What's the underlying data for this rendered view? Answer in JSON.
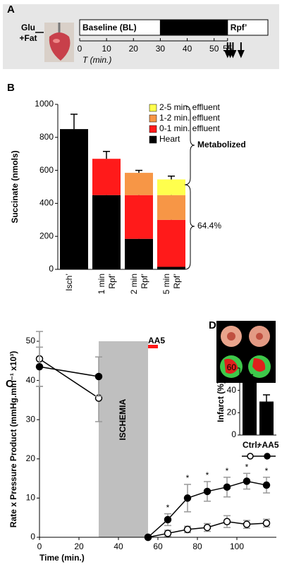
{
  "chart_data": [
    {
      "type": "timeline",
      "panel": "A",
      "label_lines": [
        "Glu",
        "+Fat"
      ],
      "xlim": [
        0,
        70
      ],
      "xticks": [
        0,
        10,
        20,
        30,
        40,
        50,
        55
      ],
      "xlabel": "T (min.)",
      "phases": [
        {
          "name": "Baseline (BL)",
          "start": 0,
          "end": 30,
          "color": "#ffffff"
        },
        {
          "name": "Ischemia",
          "start": 30,
          "end": 55,
          "color": "#000000"
        },
        {
          "name": "Rpf’",
          "start": 55,
          "end": 70,
          "color": "#ffffff"
        }
      ],
      "arrows": [
        55,
        56,
        57,
        60
      ]
    },
    {
      "type": "stacked_bar",
      "panel": "B",
      "ylabel": "Succinate (nmols)",
      "ylim": [
        0,
        1000
      ],
      "yticks": [
        0,
        200,
        400,
        600,
        800,
        1000
      ],
      "categories": [
        [
          "Isch’"
        ],
        [
          "1 min",
          "Rpf’"
        ],
        [
          "2 min",
          "Rpf’"
        ],
        [
          "5 min",
          "Rpf’"
        ]
      ],
      "series": [
        {
          "name": "Heart",
          "color": "#000000",
          "values": [
            850,
            450,
            185,
            15
          ],
          "errors": [
            90,
            18,
            30,
            12
          ]
        },
        {
          "name": "0-1 min. effluent",
          "color": "#ff1a1a",
          "values": [
            null,
            220,
            265,
            285
          ],
          "errors": [
            null,
            45,
            10,
            8
          ]
        },
        {
          "name": "1-2 min. effluent",
          "color": "#f79646",
          "values": [
            null,
            null,
            135,
            150
          ],
          "errors": [
            null,
            null,
            15,
            10
          ]
        },
        {
          "name": "2-5 min. effluent",
          "color": "#ffff4d",
          "values": [
            null,
            null,
            null,
            95
          ],
          "errors": [
            null,
            null,
            null,
            20
          ]
        }
      ],
      "annotations": [
        "Metabolized",
        "64.4%"
      ]
    },
    {
      "type": "line",
      "panel": "C",
      "ylabel": "Rate x Pressure Product (mmHg.min⁻¹ x10³)",
      "xlabel": "Time (min.)",
      "xlim": [
        0,
        120
      ],
      "xticks": [
        0,
        20,
        40,
        60,
        80,
        100
      ],
      "ylim": [
        0,
        50
      ],
      "yticks": [
        0,
        10,
        20,
        30,
        40,
        50
      ],
      "shade": {
        "label": "ISCHEMIA",
        "start": 30,
        "end": 55,
        "color": "#bfbfbf"
      },
      "treatment": {
        "label": "AA5",
        "start": 55,
        "end": 60,
        "color": "#ff1a1a"
      },
      "x": [
        0,
        30,
        55,
        65,
        75,
        85,
        95,
        105,
        115
      ],
      "series": [
        {
          "marker": "open",
          "color": "#000000",
          "values": [
            45.5,
            35.5,
            0,
            1,
            2,
            2.5,
            4,
            3.3,
            3.6
          ],
          "errors": [
            7,
            6,
            0,
            0.8,
            0.8,
            1,
            1.5,
            1,
            1
          ]
        },
        {
          "marker": "filled",
          "color": "#000000",
          "values": [
            43.5,
            41,
            0,
            4.5,
            10,
            11.7,
            12.8,
            14.3,
            13.3
          ],
          "errors": [
            5,
            5,
            0,
            1.5,
            3.5,
            2.5,
            2.5,
            2,
            2
          ]
        }
      ],
      "stars": {
        "label": "*",
        "x": [
          65,
          75,
          85,
          95,
          105,
          115
        ]
      }
    },
    {
      "type": "bar",
      "panel": "D",
      "ylabel": "Infarct (%)",
      "ylim": [
        0,
        60
      ],
      "yticks": [
        0,
        20,
        40,
        60
      ],
      "categories": [
        "Ctrl.",
        "+AA5"
      ],
      "category_colors": [
        "#000000",
        "#ff1a1a"
      ],
      "values": [
        47,
        30
      ],
      "errors": [
        7,
        6
      ],
      "color": "#000000"
    }
  ]
}
